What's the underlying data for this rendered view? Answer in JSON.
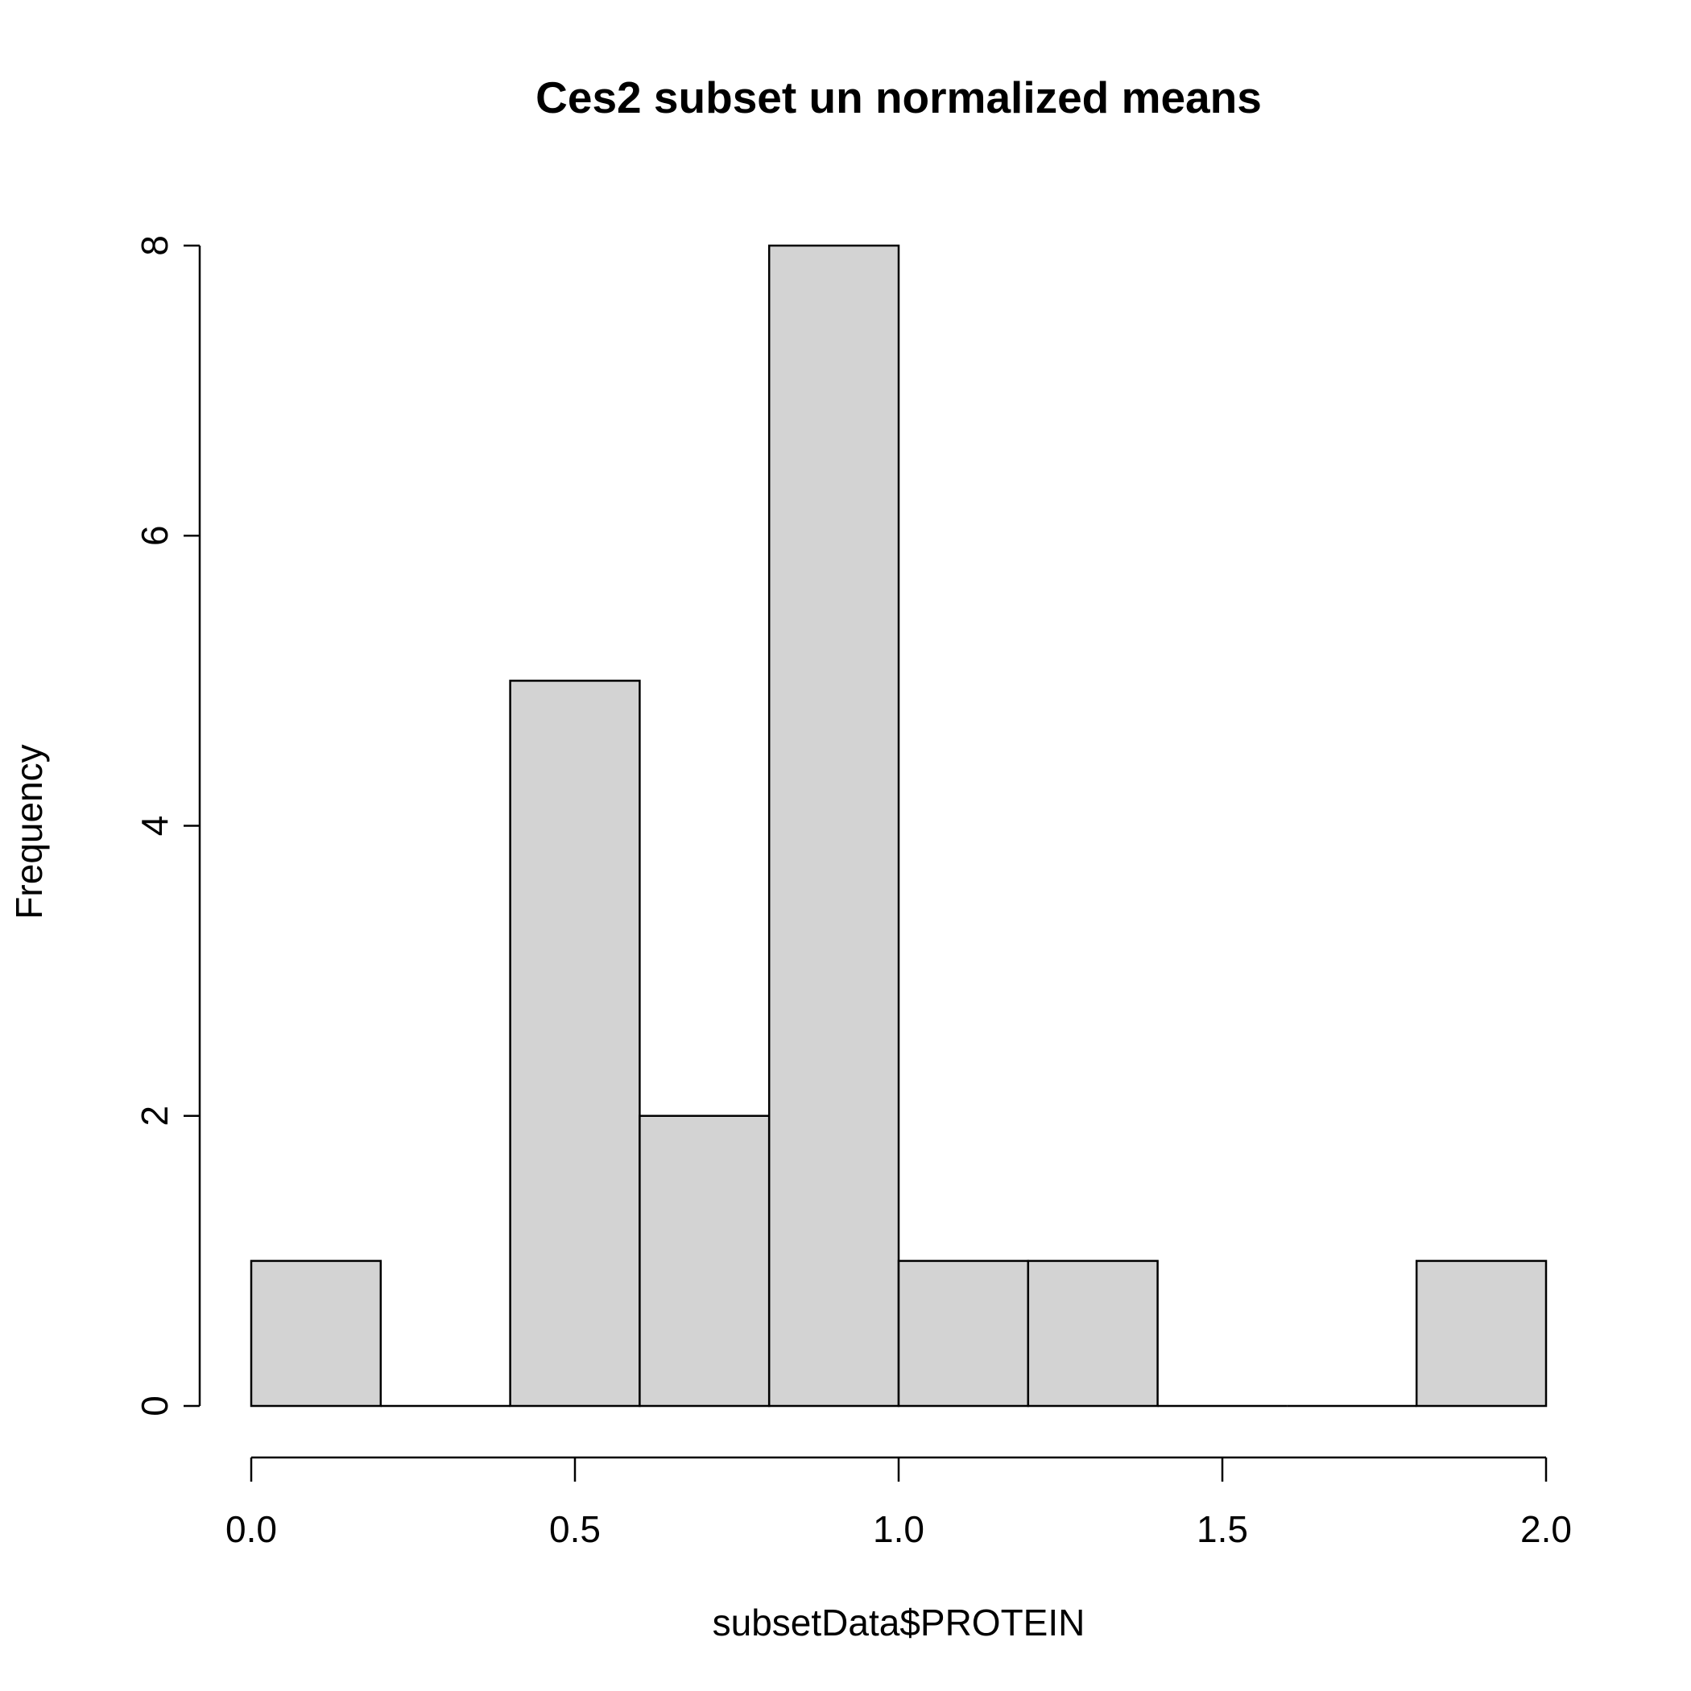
{
  "chart_data": {
    "type": "bar",
    "title": "Ces2 subset un normalized means",
    "xlabel": "subsetData$PROTEIN",
    "ylabel": "Frequency",
    "bins": [
      {
        "from": 0.0,
        "to": 0.2,
        "count": 1
      },
      {
        "from": 0.2,
        "to": 0.4,
        "count": 0
      },
      {
        "from": 0.4,
        "to": 0.6,
        "count": 5
      },
      {
        "from": 0.6,
        "to": 0.8,
        "count": 2
      },
      {
        "from": 0.8,
        "to": 1.0,
        "count": 8
      },
      {
        "from": 1.0,
        "to": 1.2,
        "count": 1
      },
      {
        "from": 1.2,
        "to": 1.4,
        "count": 1
      },
      {
        "from": 1.4,
        "to": 1.6,
        "count": 0
      },
      {
        "from": 1.6,
        "to": 1.8,
        "count": 0
      },
      {
        "from": 1.8,
        "to": 2.0,
        "count": 1
      }
    ],
    "xlim": [
      0.0,
      2.0
    ],
    "ylim": [
      0,
      8
    ],
    "x_ticks": [
      "0.0",
      "0.5",
      "1.0",
      "1.5",
      "2.0"
    ],
    "y_ticks": [
      "0",
      "2",
      "4",
      "6",
      "8"
    ],
    "colors": {
      "bar_fill": "#d3d3d3",
      "bar_stroke": "#000000"
    },
    "grid": false,
    "legend": "none"
  }
}
